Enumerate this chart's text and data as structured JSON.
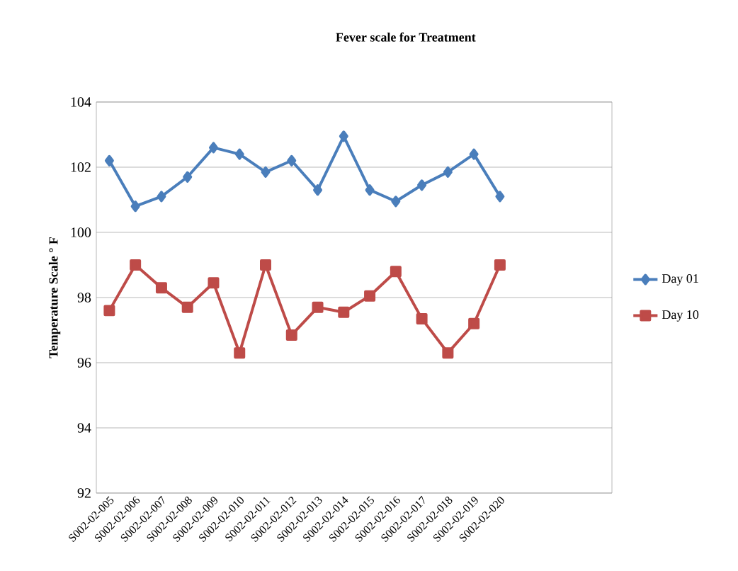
{
  "chart_data": {
    "type": "line",
    "title": "Fever scale  for Treatment",
    "ylabel": "Temperature Scale ° F",
    "categories": [
      "S002-02-005",
      "S002-02-006",
      "S002-02-007",
      "S002-02-008",
      "S002-02-009",
      "S002-02-010",
      "S002-02-011",
      "S002-02-012",
      "S002-02-013",
      "S002-02-014",
      "S002-02-015",
      "S002-02-016",
      "S002-02-017",
      "S002-02-018",
      "S002-02-019",
      "S002-02-020"
    ],
    "series": [
      {
        "name": "Day 01",
        "color": "#4a7ebb",
        "marker": "diamond",
        "values": [
          102.2,
          100.8,
          101.1,
          101.7,
          102.6,
          102.4,
          101.85,
          102.2,
          101.3,
          102.95,
          101.3,
          100.95,
          101.45,
          101.85,
          102.4,
          101.1
        ]
      },
      {
        "name": "Day 10",
        "color": "#be4b48",
        "marker": "square",
        "values": [
          97.6,
          99.0,
          98.3,
          97.7,
          98.45,
          96.3,
          99.0,
          96.85,
          97.7,
          97.55,
          98.05,
          98.8,
          97.35,
          96.3,
          97.2,
          99.0
        ]
      }
    ],
    "ylim": [
      92,
      104
    ],
    "yticks": [
      92,
      94,
      96,
      98,
      100,
      102,
      104
    ],
    "grid": "y",
    "legend": "right",
    "line_style": "solid"
  }
}
